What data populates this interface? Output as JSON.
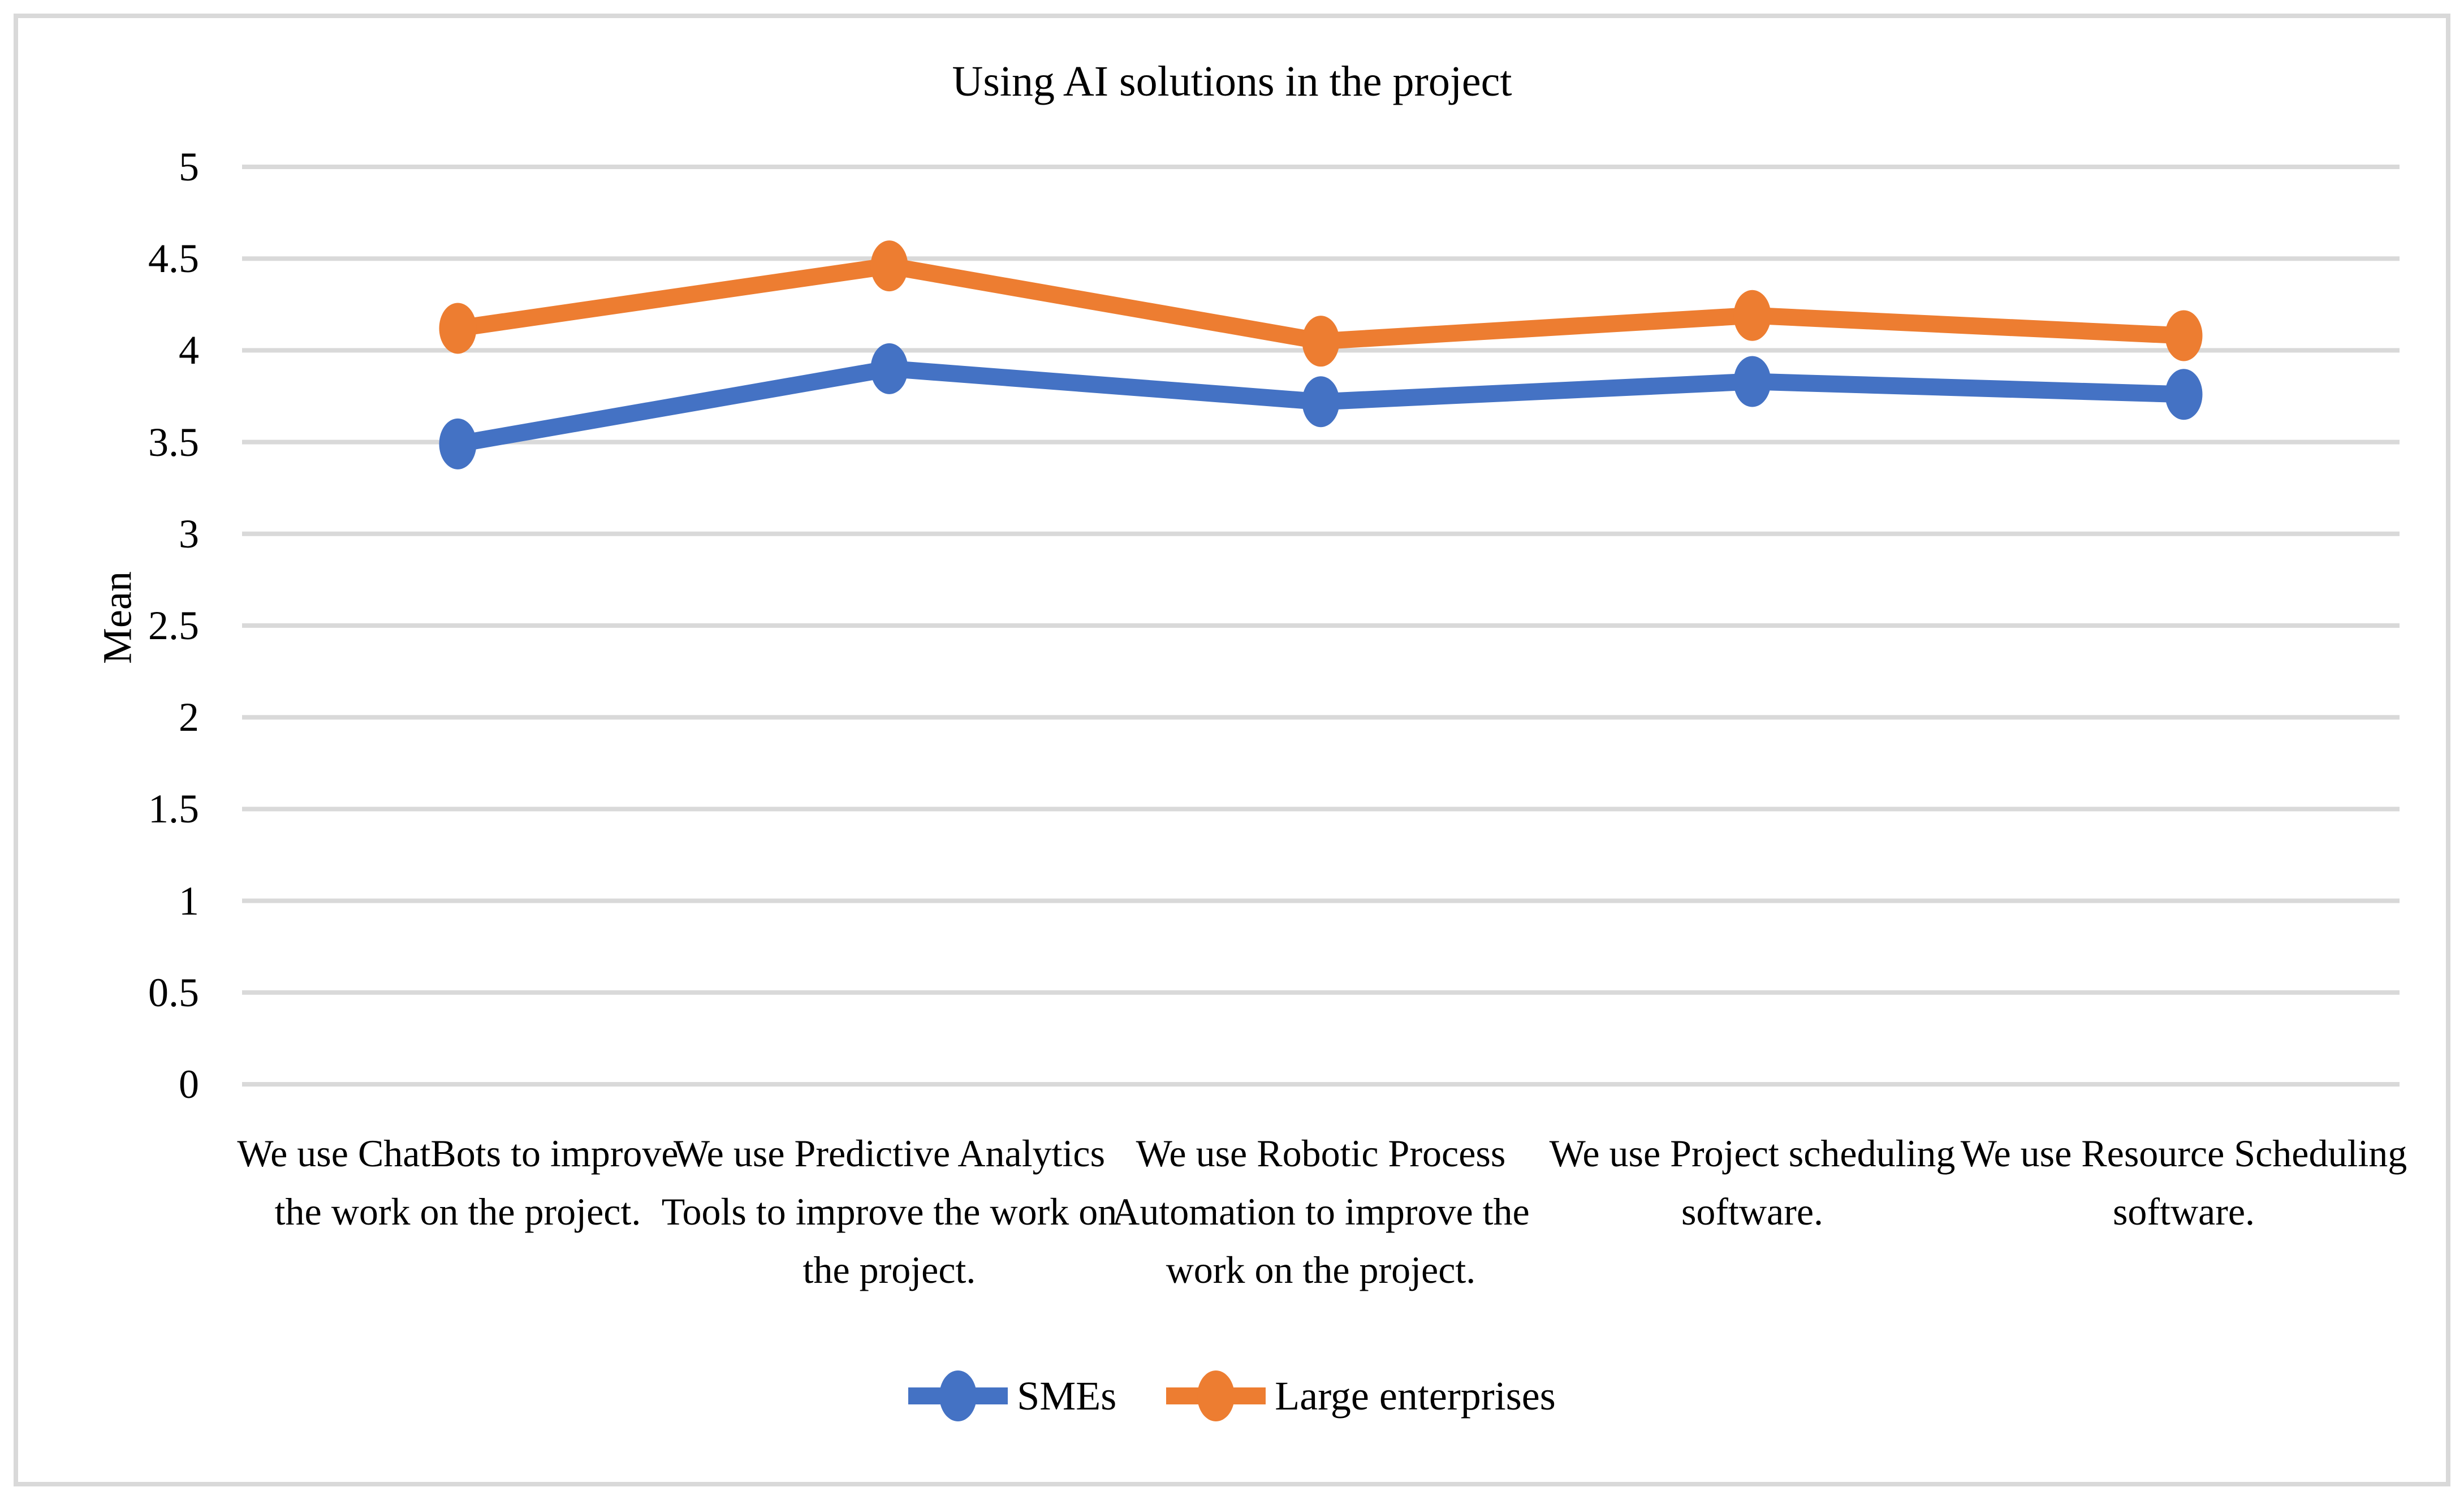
{
  "figure": {
    "title": "Using AI solutions in the project",
    "y_axis_title": "Mean"
  },
  "colors": {
    "series_smes": "#4472C4",
    "series_large": "#ED7D31",
    "gridline": "#D9D9D9",
    "frame_border": "#D9D9D9",
    "text": "#000000",
    "background": "#FFFFFF"
  },
  "chart_data": {
    "type": "line",
    "title": "Using AI solutions in the project",
    "xlabel": "",
    "ylabel": "Mean",
    "ylim": [
      0,
      5
    ],
    "ytick_step": 0.5,
    "ytick_labels": [
      "5",
      "4.5",
      "4",
      "3.5",
      "3",
      "2.5",
      "2",
      "1.5",
      "1",
      "0.5",
      "0"
    ],
    "ytick_values": [
      5,
      4.5,
      4,
      3.5,
      3,
      2.5,
      2,
      1.5,
      1,
      0.5,
      0
    ],
    "grid": "horizontal",
    "legend_position": "bottom",
    "marker": "circle",
    "categories": [
      "We use ChatBots to improve the work on the project.",
      "We use Predictive Analytics Tools to improve the work on the project.",
      "We use Robotic Process Automation to improve the work on the project.",
      "We use Project scheduling software.",
      "We use Resource Scheduling software."
    ],
    "series": [
      {
        "name": "SMEs",
        "color": "#4472C4",
        "values": [
          3.49,
          3.9,
          3.72,
          3.83,
          3.76
        ]
      },
      {
        "name": "Large enterprises",
        "color": "#ED7D31",
        "values": [
          4.12,
          4.46,
          4.05,
          4.19,
          4.08
        ]
      }
    ]
  }
}
